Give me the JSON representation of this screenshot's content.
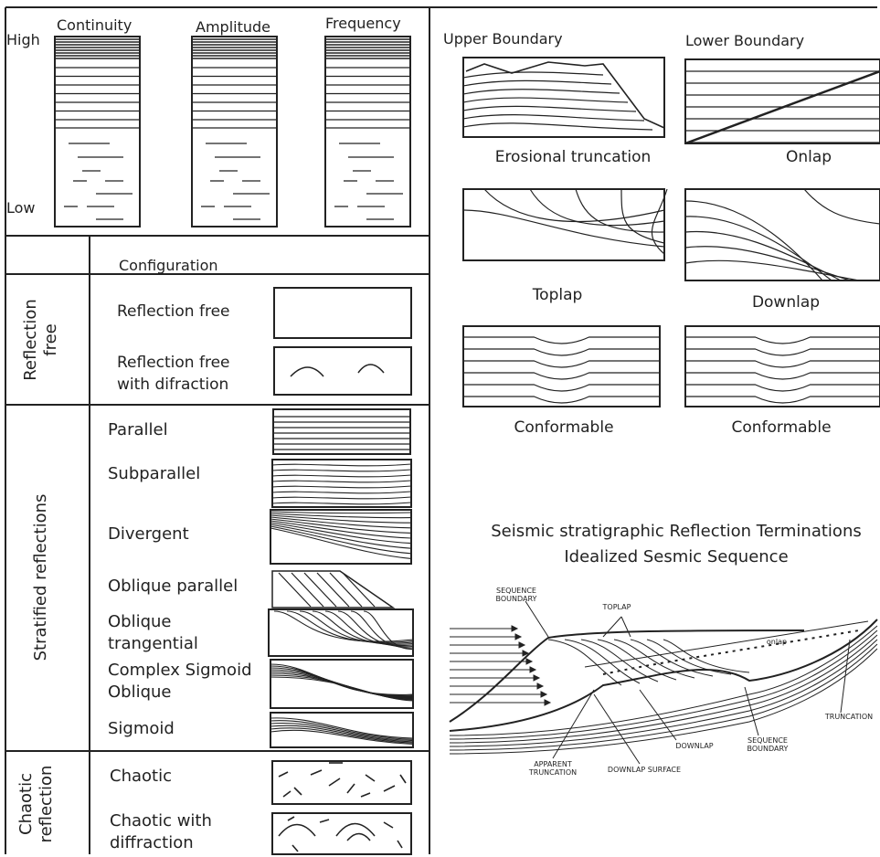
{
  "attributes": {
    "headers": [
      "Continuity",
      "Amplitude",
      "Frequency"
    ],
    "high": "High",
    "low": "Low"
  },
  "configuration": {
    "header": "Configuration",
    "groups": [
      {
        "label": "Reflection free",
        "items": [
          "Reflection free",
          "Reflection free with difraction"
        ]
      },
      {
        "label": "Stratified reflections",
        "items": [
          "Parallel",
          "Subparallel",
          "Divergent",
          "Oblique parallel",
          "Oblique trangential",
          "Complex Sigmoid Oblique",
          "Sigmoid"
        ]
      },
      {
        "label": "Chaotic reflection",
        "items": [
          "Chaotic",
          "Chaotic with diffraction"
        ]
      }
    ]
  },
  "terminations": {
    "upper_boundary": "Upper Boundary",
    "lower_boundary": "Lower Boundary",
    "panels": [
      "Erosional truncation",
      "Onlap",
      "Toplap",
      "Downlap",
      "Conformable",
      "Conformable"
    ]
  },
  "sequence": {
    "title": [
      "Seismic stratigraphic  Reflection Terminations",
      "Idealized Sesmic Sequence"
    ],
    "labels": [
      "SEQUENCE BOUNDARY",
      "TOPLAP",
      "onlap",
      "DOWNLAP",
      "SEQUENCE BOUNDARY",
      "TRUNCATION",
      "APPARENT TRUNCATION",
      "DOWNLAP SURFACE"
    ]
  }
}
